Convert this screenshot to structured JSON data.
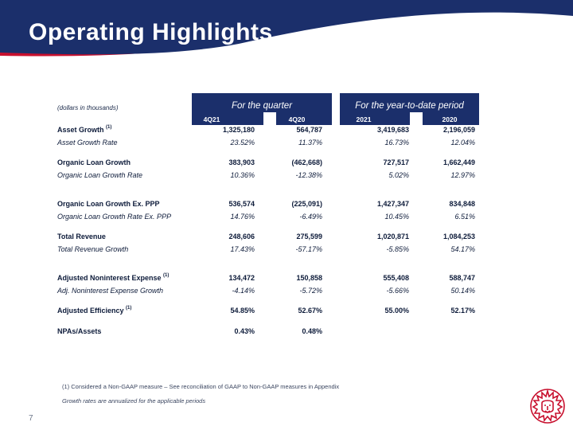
{
  "title": "Operating Highlights",
  "units_note": "(dollars in thousands)",
  "groups": {
    "quarter": "For the quarter",
    "ytd": "For the year-to-date period"
  },
  "columns": [
    "4Q21",
    "4Q20",
    "2021",
    "2020"
  ],
  "rows": [
    {
      "label": "Asset Growth",
      "sup": "(1)",
      "style": "bold",
      "values": [
        "1,325,180",
        "564,787",
        "3,419,683",
        "2,196,059"
      ]
    },
    {
      "label": "Asset Growth Rate",
      "sup": "",
      "style": "ital",
      "values": [
        "23.52%",
        "11.37%",
        "16.73%",
        "12.04%"
      ]
    },
    {
      "label": "Organic Loan Growth",
      "sup": "",
      "style": "bold",
      "values": [
        "383,903",
        "(462,668)",
        "727,517",
        "1,662,449"
      ]
    },
    {
      "label": "Organic Loan Growth Rate",
      "sup": "",
      "style": "ital",
      "values": [
        "10.36%",
        "-12.38%",
        "5.02%",
        "12.97%"
      ]
    },
    {
      "label": "Organic Loan Growth Ex. PPP",
      "sup": "",
      "style": "bold",
      "values": [
        "536,574",
        "(225,091)",
        "1,427,347",
        "834,848"
      ]
    },
    {
      "label": "Organic Loan Growth Rate Ex. PPP",
      "sup": "",
      "style": "ital",
      "values": [
        "14.76%",
        "-6.49%",
        "10.45%",
        "6.51%"
      ]
    },
    {
      "label": "Total Revenue",
      "sup": "",
      "style": "bold",
      "values": [
        "248,606",
        "275,599",
        "1,020,871",
        "1,084,253"
      ]
    },
    {
      "label": "Total Revenue Growth",
      "sup": "",
      "style": "ital",
      "values": [
        "17.43%",
        "-57.17%",
        "-5.85%",
        "54.17%"
      ]
    },
    {
      "label": "Adjusted Noninterest Expense",
      "sup": "(1)",
      "style": "bold",
      "values": [
        "134,472",
        "150,858",
        "555,408",
        "588,747"
      ]
    },
    {
      "label": "Adj. Noninterest Expense Growth",
      "sup": "",
      "style": "ital",
      "values": [
        "-4.14%",
        "-5.72%",
        "-5.66%",
        "50.14%"
      ]
    },
    {
      "label": "Adjusted Efficiency",
      "sup": "(1)",
      "style": "bold",
      "values": [
        "54.85%",
        "52.67%",
        "55.00%",
        "52.17%"
      ]
    },
    {
      "label": "NPAs/Assets",
      "sup": "",
      "style": "bold",
      "values": [
        "0.43%",
        "0.48%",
        "",
        ""
      ]
    }
  ],
  "footnotes": {
    "note1": "(1)    Considered a Non-GAAP measure – See reconciliation of GAAP to Non-GAAP measures in Appendix",
    "note2": "Growth rates are annualized for the applicable periods"
  },
  "page_number": "7",
  "colors": {
    "header_navy": "#1b2f6b",
    "accent_red": "#c8102e",
    "text_dark": "#0d1b3a"
  },
  "icons": {
    "logo": "lion-head-logo"
  }
}
